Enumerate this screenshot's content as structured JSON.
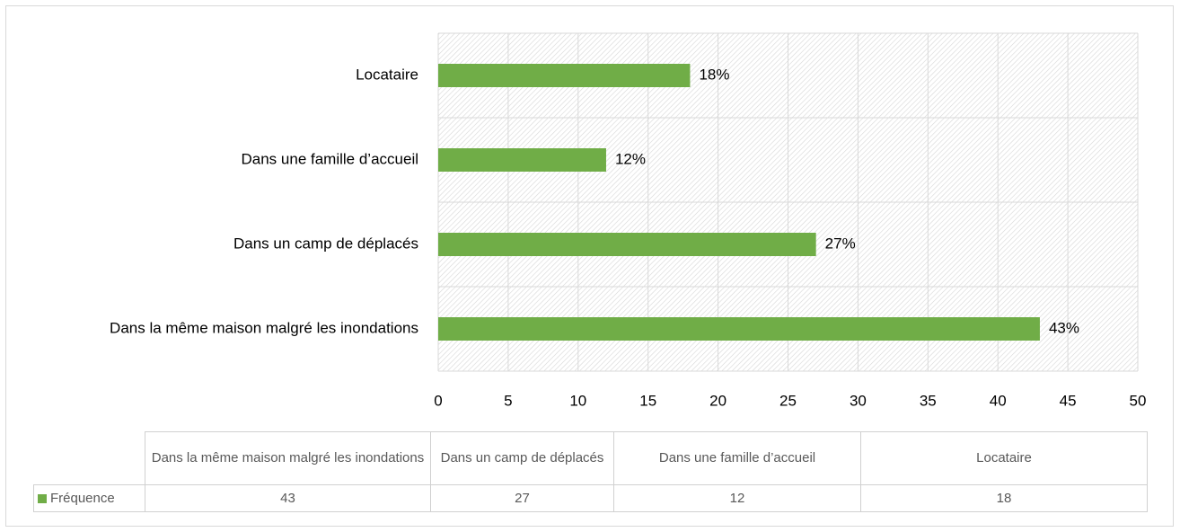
{
  "chart_data": {
    "type": "bar",
    "orientation": "horizontal",
    "categories": [
      "Dans la même maison malgré les inondations",
      "Dans un camp de déplacés",
      "Dans une famille d’accueil",
      "Locataire"
    ],
    "series": [
      {
        "name": "Fréquence",
        "color": "#70ad47",
        "values": [
          43,
          27,
          12,
          18
        ],
        "value_labels": [
          "43%",
          "27%",
          "12%",
          "18%"
        ]
      }
    ],
    "xlim": [
      0,
      50
    ],
    "xticks": [
      0,
      5,
      10,
      15,
      20,
      25,
      30,
      35,
      40,
      45,
      50
    ],
    "grid": true
  }
}
